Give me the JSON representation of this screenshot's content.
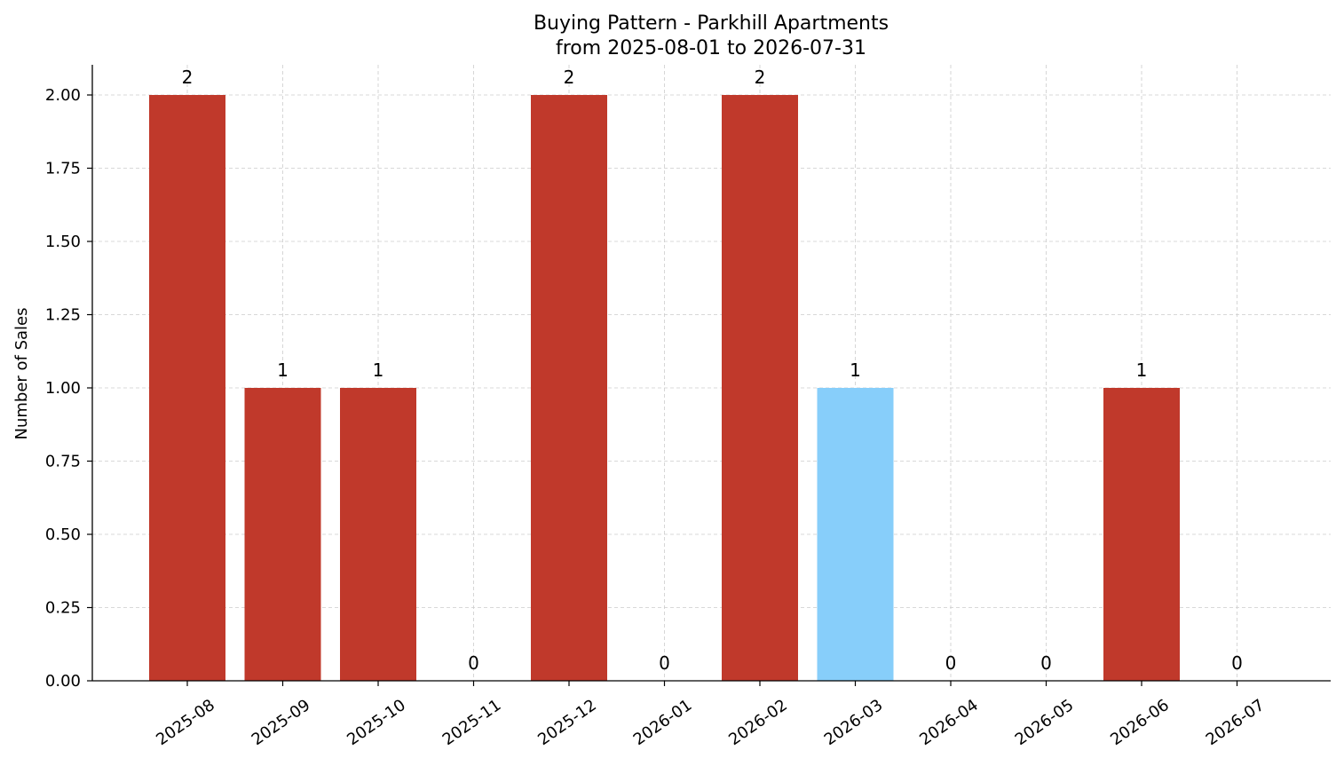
{
  "chart_data": {
    "type": "bar",
    "title": "Buying Pattern - Parkhill Apartments",
    "subtitle": "from 2025-08-01 to 2026-07-31",
    "xlabel": "",
    "ylabel": "Number of Sales",
    "categories": [
      "2025-08",
      "2025-09",
      "2025-10",
      "2025-11",
      "2025-12",
      "2026-01",
      "2026-02",
      "2026-03",
      "2026-04",
      "2026-05",
      "2026-06",
      "2026-07"
    ],
    "values": [
      2,
      1,
      1,
      0,
      2,
      0,
      2,
      1,
      0,
      0,
      1,
      0
    ],
    "bar_colors": [
      "#c0392b",
      "#c0392b",
      "#c0392b",
      "#c0392b",
      "#c0392b",
      "#c0392b",
      "#c0392b",
      "#87cefa",
      "#c0392b",
      "#c0392b",
      "#c0392b",
      "#c0392b"
    ],
    "yticks": [
      "0.00",
      "0.25",
      "0.50",
      "0.75",
      "1.00",
      "1.25",
      "1.50",
      "1.75",
      "2.00"
    ],
    "ylim": [
      0,
      2.1
    ],
    "grid": true,
    "colors": {
      "primary": "#c0392b",
      "highlight": "#87cefa",
      "grid": "#cccccc"
    }
  }
}
